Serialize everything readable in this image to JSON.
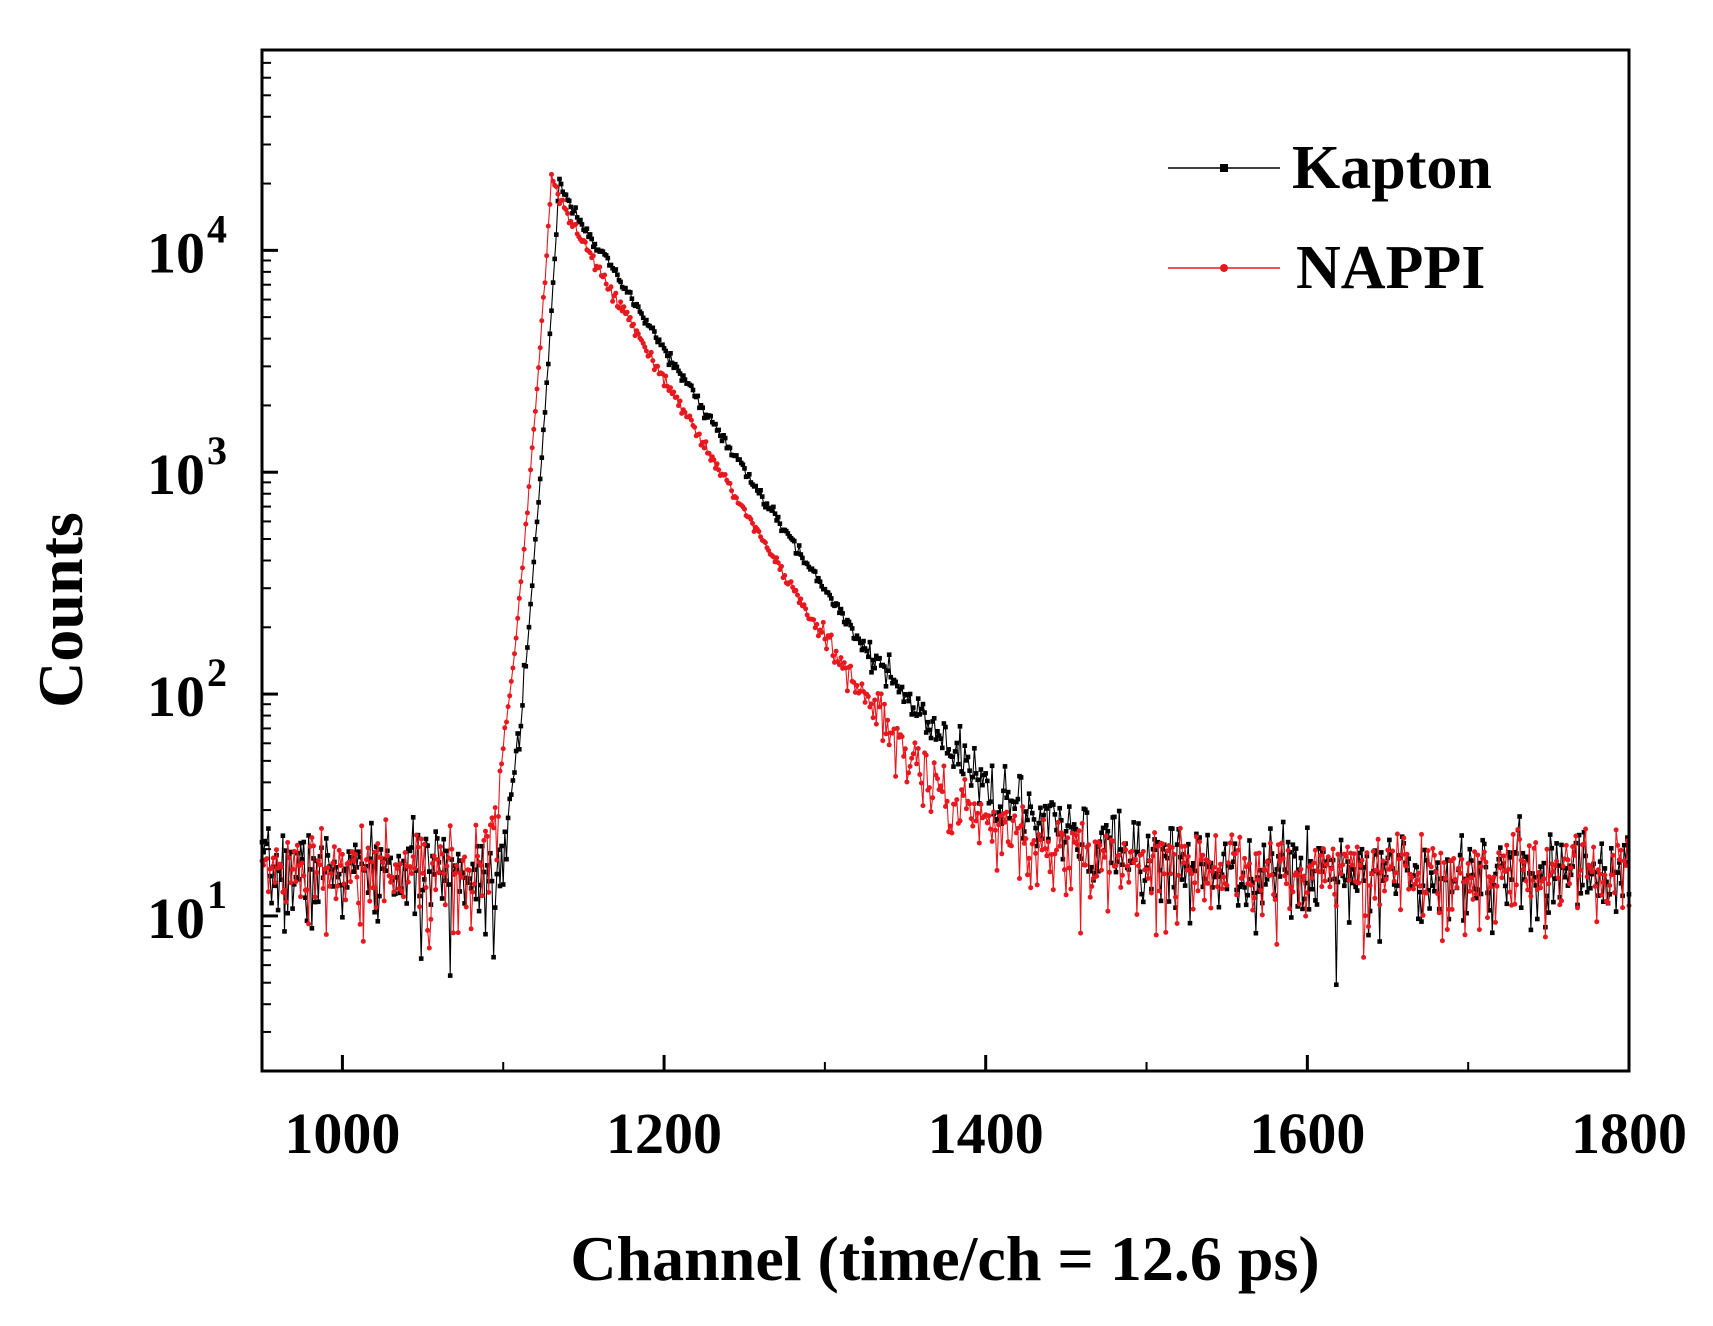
{
  "chart_data": {
    "type": "line",
    "title": "",
    "xlabel": "Channel (time/ch = 12.6 ps)",
    "ylabel": "Counts",
    "x_range": [
      950,
      1800
    ],
    "y_range": [
      2,
      80000
    ],
    "y_scale": "log",
    "grid": false,
    "legend_position": "top-right",
    "x_ticks": [
      {
        "value": 1000,
        "label": "1000"
      },
      {
        "value": 1200,
        "label": "1200"
      },
      {
        "value": 1400,
        "label": "1400"
      },
      {
        "value": 1600,
        "label": "1600"
      },
      {
        "value": 1800,
        "label": "1800"
      }
    ],
    "y_ticks": [
      {
        "value": 10,
        "base": "10",
        "exp": "1"
      },
      {
        "value": 100,
        "base": "10",
        "exp": "2"
      },
      {
        "value": 1000,
        "base": "10",
        "exp": "3"
      },
      {
        "value": 10000,
        "base": "10",
        "exp": "4"
      }
    ],
    "series": [
      {
        "name": "Kapton",
        "color": "#000000",
        "marker": "square",
        "baseline": 16,
        "onset_channel": 1095,
        "peak_channel": 1135,
        "peak_counts": 21000,
        "decay_constant_channels": 39,
        "tail_amplitude": 22,
        "tail_constant_channels": 120
      },
      {
        "name": "NAPPI",
        "color": "#e8191e",
        "marker": "circle",
        "baseline": 16,
        "onset_channel": 1085,
        "peak_channel": 1130,
        "peak_counts": 21000,
        "decay_constant_channels": 35.5,
        "tail_amplitude": 18,
        "tail_constant_channels": 110
      }
    ]
  }
}
